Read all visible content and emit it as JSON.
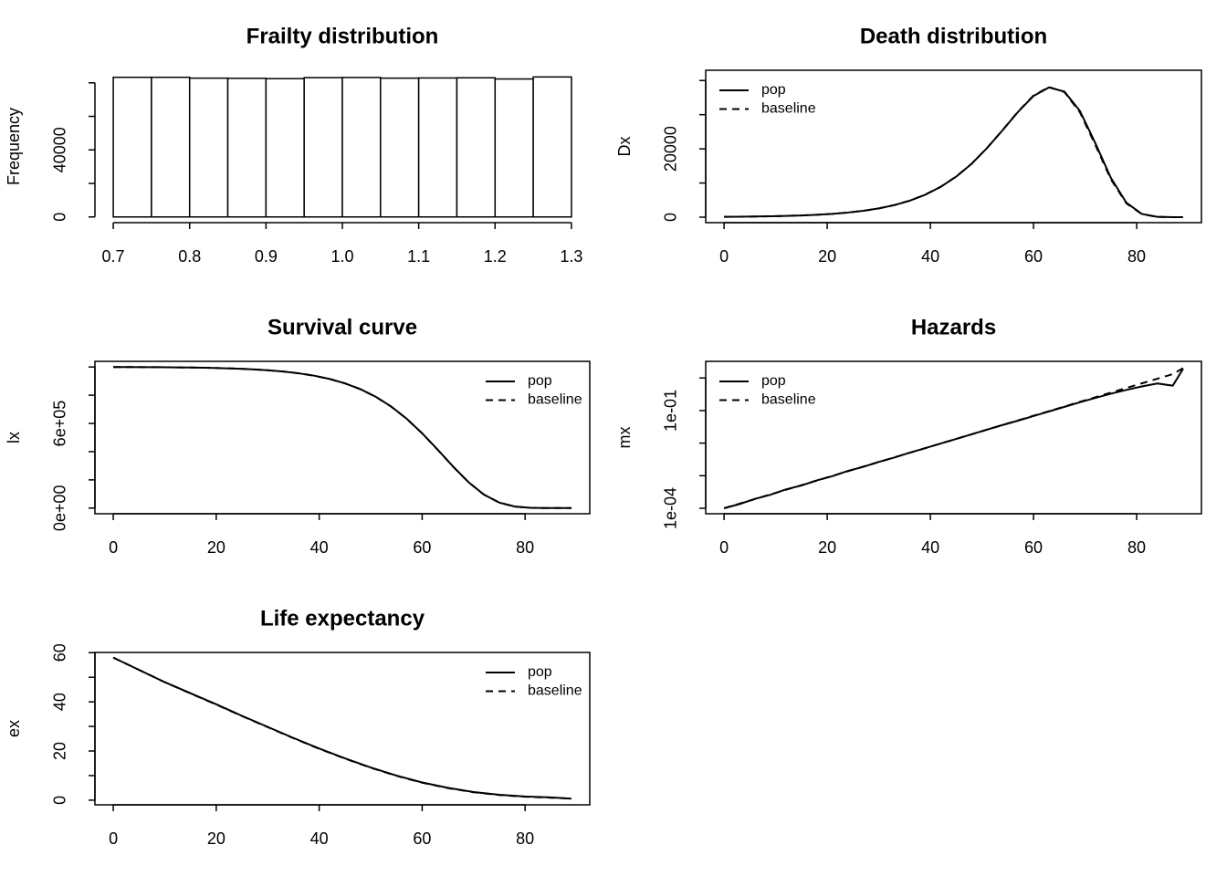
{
  "chart_data": [
    {
      "type": "histogram",
      "title": "Frailty distribution",
      "ylabel": "Frequency",
      "bins": [
        0.7,
        0.75,
        0.8,
        0.85,
        0.9,
        0.95,
        1.0,
        1.05,
        1.1,
        1.15,
        1.2,
        1.25,
        1.3
      ],
      "values": [
        83300,
        83300,
        82800,
        82700,
        82500,
        83100,
        83200,
        82800,
        82900,
        83000,
        82300,
        83500
      ],
      "color": "#ffffff",
      "edgecolor": "#000000",
      "xlim": [
        0.676,
        1.324
      ],
      "ylim": [
        -3400,
        87500
      ],
      "xticks": [
        0.7,
        0.8,
        0.9,
        {
          "value": 1,
          "label": "1.0"
        },
        1.1,
        1.2,
        1.3
      ],
      "yticks": [
        0,
        {
          "value": 20000,
          "label": null
        },
        40000,
        {
          "value": 60000,
          "label": null
        },
        {
          "value": 80000,
          "label": null
        }
      ]
    },
    {
      "type": "line",
      "title": "Death distribution",
      "ylabel": "Dx",
      "legend": "topleft",
      "x": [
        0,
        3,
        6,
        9,
        12,
        15,
        18,
        21,
        24,
        27,
        30,
        33,
        36,
        39,
        42,
        45,
        48,
        51,
        54,
        57,
        60,
        63,
        66,
        69,
        72,
        75,
        78,
        81,
        84,
        87,
        89
      ],
      "series": [
        {
          "name": "pop",
          "color": "#000000",
          "linestyle": "solid",
          "values": [
            100,
            139,
            192,
            267,
            369,
            511,
            707,
            978,
            1353,
            1866,
            2567,
            3527,
            4825,
            6565,
            8869,
            11861,
            15623,
            20250,
            25440,
            30820,
            35490,
            37970,
            36740,
            31090,
            21610,
            11520,
            4250,
            942,
            103,
            4,
            0
          ]
        },
        {
          "name": "baseline",
          "color": "#000000",
          "linestyle": "dashed",
          "values": [
            100,
            140,
            193,
            268,
            371,
            513,
            710,
            982,
            1358,
            1872,
            2575,
            3538,
            4840,
            6585,
            8895,
            11890,
            15650,
            20280,
            25470,
            30900,
            35600,
            38100,
            36600,
            30700,
            21100,
            11100,
            4050,
            890,
            96,
            4,
            0
          ]
        }
      ],
      "xlim": [
        -3.56,
        92.56
      ],
      "ylim": [
        -1600,
        43000
      ],
      "xticks": [
        0,
        20,
        40,
        60,
        80
      ],
      "yticks": [
        0,
        {
          "value": 10000,
          "label": null
        },
        20000,
        {
          "value": 30000,
          "label": null
        },
        {
          "value": 40000,
          "label": null
        }
      ]
    },
    {
      "type": "line",
      "title": "Survival curve",
      "ylabel": "lx",
      "legend": "topright",
      "x": [
        0,
        3,
        6,
        9,
        12,
        15,
        18,
        21,
        24,
        27,
        30,
        33,
        36,
        39,
        42,
        45,
        48,
        51,
        54,
        57,
        60,
        63,
        66,
        69,
        72,
        75,
        78,
        81,
        84,
        87,
        89
      ],
      "series": [
        {
          "name": "pop",
          "color": "#000000",
          "linestyle": "solid",
          "values": [
            1000000,
            999645,
            999154,
            998471,
            997533,
            996217,
            994406,
            991903,
            988437,
            983655,
            977057,
            967984,
            955539,
            938568,
            915487,
            884351,
            842990,
            788930,
            719480,
            633270,
            530490,
            414930,
            295090,
            183990,
            95600,
            38540,
            10930,
            1903,
            169,
            6,
            0
          ]
        },
        {
          "name": "baseline",
          "color": "#000000",
          "linestyle": "dashed",
          "values": [
            1000000,
            999640,
            999150,
            998460,
            997520,
            996200,
            994380,
            991870,
            988390,
            983590,
            976970,
            967850,
            955360,
            938330,
            915180,
            883960,
            842510,
            788370,
            718860,
            632610,
            529740,
            414080,
            294280,
            183450,
            95400,
            38450,
            10900,
            1890,
            168,
            6,
            0
          ]
        }
      ],
      "xlim": [
        -3.56,
        92.56
      ],
      "ylim": [
        -40000,
        1040000
      ],
      "xticks": [
        0,
        20,
        40,
        60,
        80
      ],
      "yticks": [
        {
          "value": 0,
          "label": "0e+00"
        },
        {
          "value": 200000,
          "label": null
        },
        {
          "value": 400000,
          "label": null
        },
        {
          "value": 600000,
          "label": "6e+05"
        },
        {
          "value": 800000,
          "label": null
        },
        {
          "value": 1000000,
          "label": null
        }
      ]
    },
    {
      "type": "line",
      "title": "Hazards",
      "ylabel": "mx",
      "legend": "topleft",
      "log_y": true,
      "x": [
        0,
        3,
        6,
        9,
        12,
        15,
        18,
        21,
        24,
        27,
        30,
        33,
        36,
        39,
        42,
        45,
        48,
        51,
        54,
        57,
        60,
        63,
        66,
        69,
        72,
        75,
        78,
        81,
        84,
        87,
        89
      ],
      "series": [
        {
          "name": "pop",
          "color": "#000000",
          "linestyle": "solid",
          "values": [
            0.0001,
            0.000135,
            0.000195,
            0.00026,
            0.00038,
            0.0005,
            0.00072,
            0.00097,
            0.0014,
            0.00188,
            0.00265,
            0.0036,
            0.0051,
            0.007,
            0.0097,
            0.0134,
            0.0187,
            0.026,
            0.036,
            0.049,
            0.068,
            0.094,
            0.13,
            0.18,
            0.245,
            0.33,
            0.43,
            0.55,
            0.68,
            0.58,
            1.9
          ]
        },
        {
          "name": "baseline",
          "color": "#000000",
          "linestyle": "dashed",
          "values": [
            0.0001,
            0.000139,
            0.000192,
            0.000267,
            0.00037,
            0.000513,
            0.000711,
            0.000987,
            0.00137,
            0.0019,
            0.00263,
            0.00365,
            0.00506,
            0.00702,
            0.00973,
            0.0135,
            0.0187,
            0.026,
            0.036,
            0.0499,
            0.0692,
            0.096,
            0.133,
            0.185,
            0.256,
            0.355,
            0.493,
            0.683,
            0.947,
            1.31,
            2.0
          ]
        }
      ],
      "xlim": [
        -3.56,
        92.56
      ],
      "ylim": [
        6.8e-05,
        3.24
      ],
      "xticks": [
        0,
        20,
        40,
        60,
        80
      ],
      "yticks": [
        {
          "value": 0.0001,
          "label": "1e-04"
        },
        {
          "value": 0.001,
          "label": null
        },
        {
          "value": 0.01,
          "label": null
        },
        {
          "value": 0.1,
          "label": "1e-01"
        },
        {
          "value": 1,
          "label": null
        }
      ]
    },
    {
      "type": "line",
      "title": "Life expectancy",
      "ylabel": "ex",
      "legend": "topright",
      "x": [
        0,
        5,
        10,
        15,
        20,
        25,
        30,
        35,
        40,
        45,
        50,
        55,
        60,
        65,
        70,
        75,
        80,
        85,
        89
      ],
      "series": [
        {
          "name": "pop",
          "color": "#000000",
          "linestyle": "solid",
          "values": [
            58,
            53,
            48,
            43.5,
            39,
            34.3,
            29.8,
            25.3,
            21,
            17,
            13.3,
            10,
            7.2,
            5,
            3.3,
            2.2,
            1.5,
            1.1,
            0.6
          ]
        },
        {
          "name": "baseline",
          "color": "#000000",
          "linestyle": "dashed",
          "values": [
            58,
            53,
            48,
            43.4,
            38.9,
            34.2,
            29.7,
            25.2,
            20.9,
            16.9,
            13.2,
            9.9,
            7.1,
            4.9,
            3.2,
            2.1,
            1.4,
            1,
            0.6
          ]
        }
      ],
      "xlim": [
        -3.56,
        92.56
      ],
      "ylim": [
        -1.9,
        60.1
      ],
      "xticks": [
        0,
        20,
        40,
        60,
        80
      ],
      "yticks": [
        0,
        {
          "value": 10,
          "label": null
        },
        20,
        {
          "value": 30,
          "label": null
        },
        40,
        {
          "value": 50,
          "label": null
        },
        60
      ]
    }
  ]
}
